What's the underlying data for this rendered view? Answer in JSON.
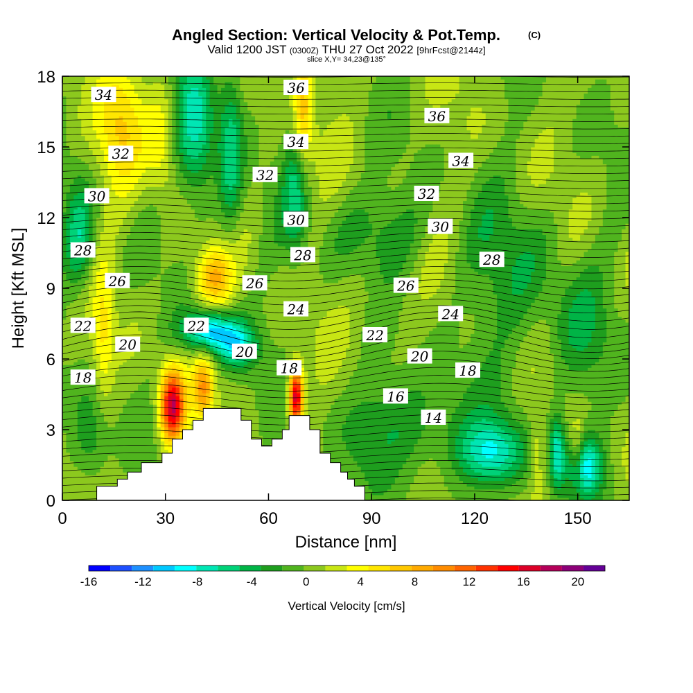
{
  "chart_data": {
    "type": "heatmap",
    "title": "Angled Section: Vertical Velocity & Pot.Temp.",
    "title_mark": "(C)",
    "subtitle_parts": {
      "valid": "Valid 1200 JST",
      "utc": "(0300Z)",
      "date": "THU 27 Oct 2022",
      "fcst": "[9hrFcst@2144z]"
    },
    "slice_label": "slice X,Y= 34,23@135°",
    "xlabel": "Distance [nm]",
    "ylabel": "Height [Kft MSL]",
    "xlim": [
      0,
      165
    ],
    "ylim": [
      0,
      18
    ],
    "xticks": [
      {
        "v": 0,
        "label": "0"
      },
      {
        "v": 30,
        "label": "30"
      },
      {
        "v": 60,
        "label": "60"
      },
      {
        "v": 90,
        "label": "90"
      },
      {
        "v": 120,
        "label": "120"
      },
      {
        "v": 150,
        "label": "150"
      }
    ],
    "yticks": [
      {
        "v": 0,
        "label": "0"
      },
      {
        "v": 3,
        "label": "3"
      },
      {
        "v": 6,
        "label": "6"
      },
      {
        "v": 9,
        "label": "9"
      },
      {
        "v": 12,
        "label": "12"
      },
      {
        "v": 15,
        "label": "15"
      },
      {
        "v": 18,
        "label": "18"
      }
    ],
    "colorbar": {
      "title": "Vertical Velocity [cm/s]",
      "min": -16,
      "max": 22,
      "colors": [
        "#0000ff",
        "#1e50ff",
        "#1e90ff",
        "#00c8ff",
        "#00ffff",
        "#00e6b4",
        "#00d278",
        "#00b446",
        "#1e9e1e",
        "#50b41e",
        "#8cc81e",
        "#c8e614",
        "#ffff00",
        "#ffe600",
        "#ffc800",
        "#ffaa00",
        "#ff8c00",
        "#ff6400",
        "#ff3200",
        "#ff0000",
        "#dc0028",
        "#b4005a",
        "#8c0078",
        "#640096"
      ],
      "labels": [
        {
          "v": -16,
          "label": "-16"
        },
        {
          "v": -12,
          "label": "-12"
        },
        {
          "v": -8,
          "label": "-8"
        },
        {
          "v": -4,
          "label": "-4"
        },
        {
          "v": 0,
          "label": "0"
        },
        {
          "v": 4,
          "label": "4"
        },
        {
          "v": 8,
          "label": "8"
        },
        {
          "v": 12,
          "label": "12"
        },
        {
          "v": 16,
          "label": "16"
        },
        {
          "v": 20,
          "label": "20"
        }
      ]
    },
    "terrain": [
      [
        10,
        0.6
      ],
      [
        16,
        0.6
      ],
      [
        16,
        0.9
      ],
      [
        19,
        0.9
      ],
      [
        19,
        1.2
      ],
      [
        23,
        1.2
      ],
      [
        23,
        1.6
      ],
      [
        29,
        1.6
      ],
      [
        29,
        2.0
      ],
      [
        32,
        2.0
      ],
      [
        32,
        2.6
      ],
      [
        35,
        2.6
      ],
      [
        35,
        3.0
      ],
      [
        38,
        3.0
      ],
      [
        38,
        3.4
      ],
      [
        41,
        3.4
      ],
      [
        41,
        3.9
      ],
      [
        52,
        3.9
      ],
      [
        52,
        3.4
      ],
      [
        55,
        3.4
      ],
      [
        55,
        2.6
      ],
      [
        58,
        2.6
      ],
      [
        58,
        2.3
      ],
      [
        61,
        2.3
      ],
      [
        61,
        2.6
      ],
      [
        64,
        2.6
      ],
      [
        64,
        3.0
      ],
      [
        66,
        3.0
      ],
      [
        66,
        3.6
      ],
      [
        72,
        3.6
      ],
      [
        72,
        3.0
      ],
      [
        75,
        3.0
      ],
      [
        75,
        2.0
      ],
      [
        78,
        2.0
      ],
      [
        78,
        1.6
      ],
      [
        81,
        1.6
      ],
      [
        81,
        1.2
      ],
      [
        83,
        1.2
      ],
      [
        83,
        0.9
      ],
      [
        85,
        0.9
      ],
      [
        85,
        0.6
      ],
      [
        88,
        0.6
      ],
      [
        88,
        0.3
      ]
    ],
    "theta_labels": [
      {
        "x": 12,
        "y": 17.2,
        "label": "34"
      },
      {
        "x": 17,
        "y": 14.7,
        "label": "32"
      },
      {
        "x": 10,
        "y": 12.9,
        "label": "30"
      },
      {
        "x": 6,
        "y": 10.6,
        "label": "28"
      },
      {
        "x": 16,
        "y": 9.3,
        "label": "26"
      },
      {
        "x": 6,
        "y": 7.4,
        "label": "22"
      },
      {
        "x": 19,
        "y": 6.6,
        "label": "20"
      },
      {
        "x": 6,
        "y": 5.2,
        "label": "18"
      },
      {
        "x": 68,
        "y": 17.5,
        "label": "36"
      },
      {
        "x": 68,
        "y": 15.2,
        "label": "34"
      },
      {
        "x": 59,
        "y": 13.8,
        "label": "32"
      },
      {
        "x": 68,
        "y": 11.9,
        "label": "30"
      },
      {
        "x": 70,
        "y": 10.4,
        "label": "28"
      },
      {
        "x": 56,
        "y": 9.2,
        "label": "26"
      },
      {
        "x": 68,
        "y": 8.1,
        "label": "24"
      },
      {
        "x": 39,
        "y": 7.4,
        "label": "22"
      },
      {
        "x": 53,
        "y": 6.3,
        "label": "20"
      },
      {
        "x": 66,
        "y": 5.6,
        "label": "18"
      },
      {
        "x": 109,
        "y": 16.3,
        "label": "36"
      },
      {
        "x": 116,
        "y": 14.4,
        "label": "34"
      },
      {
        "x": 106,
        "y": 13.0,
        "label": "32"
      },
      {
        "x": 110,
        "y": 11.6,
        "label": "30"
      },
      {
        "x": 125,
        "y": 10.2,
        "label": "28"
      },
      {
        "x": 100,
        "y": 9.1,
        "label": "26"
      },
      {
        "x": 113,
        "y": 7.9,
        "label": "24"
      },
      {
        "x": 91,
        "y": 7.0,
        "label": "22"
      },
      {
        "x": 104,
        "y": 6.1,
        "label": "20"
      },
      {
        "x": 118,
        "y": 5.5,
        "label": "18"
      },
      {
        "x": 97,
        "y": 4.4,
        "label": "16"
      },
      {
        "x": 108,
        "y": 3.5,
        "label": "14"
      }
    ],
    "w_anomalies": [
      {
        "x": 32,
        "y": 4.0,
        "sx": 2.5,
        "sy": 1.1,
        "w": 17
      },
      {
        "x": 41,
        "y": 4.8,
        "sx": 2.0,
        "sy": 0.9,
        "w": 8
      },
      {
        "x": 68,
        "y": 4.4,
        "sx": 1.4,
        "sy": 0.9,
        "w": 17
      },
      {
        "x": 44,
        "y": 9.5,
        "sx": 4.0,
        "sy": 0.9,
        "w": 7
      },
      {
        "x": 43,
        "y": 7.2,
        "sx": 5.5,
        "sy": 0.6,
        "w": -11
      },
      {
        "x": 51,
        "y": 6.5,
        "sx": 4.0,
        "sy": 0.6,
        "w": -7
      },
      {
        "x": 17,
        "y": 16.0,
        "sx": 5.0,
        "sy": 2.0,
        "w": 5
      },
      {
        "x": 29,
        "y": 15.5,
        "sx": 3.0,
        "sy": 1.8,
        "w": 4
      },
      {
        "x": 70,
        "y": 16.5,
        "sx": 2.0,
        "sy": 1.8,
        "w": 7
      },
      {
        "x": 39,
        "y": 16.0,
        "sx": 4.0,
        "sy": 2.4,
        "w": -7
      },
      {
        "x": 49,
        "y": 15.0,
        "sx": 2.5,
        "sy": 2.8,
        "w": -6
      },
      {
        "x": 68,
        "y": 13.2,
        "sx": 2.5,
        "sy": 2.2,
        "w": -5
      },
      {
        "x": 5,
        "y": 11.0,
        "sx": 3.0,
        "sy": 1.6,
        "w": -6
      },
      {
        "x": 12,
        "y": 7.0,
        "sx": 2.0,
        "sy": 2.0,
        "w": 4
      },
      {
        "x": 100,
        "y": 3.2,
        "sx": 12.0,
        "sy": 1.5,
        "w": -4
      },
      {
        "x": 125,
        "y": 2.0,
        "sx": 7.0,
        "sy": 1.0,
        "w": -8
      },
      {
        "x": 144,
        "y": 2.0,
        "sx": 1.5,
        "sy": 1.1,
        "w": -8
      },
      {
        "x": 152,
        "y": 1.5,
        "sx": 3.5,
        "sy": 0.9,
        "w": -9
      },
      {
        "x": 138,
        "y": 2.0,
        "sx": 1.5,
        "sy": 1.2,
        "w": 3
      },
      {
        "x": 150,
        "y": 2.0,
        "sx": 1.5,
        "sy": 1.0,
        "w": 5
      },
      {
        "x": 130,
        "y": 9.5,
        "sx": 10.0,
        "sy": 2.5,
        "w": -3
      },
      {
        "x": 93,
        "y": 8.5,
        "sx": 5.0,
        "sy": 1.0,
        "w": 1
      },
      {
        "x": 93,
        "y": 11.5,
        "sx": 10.0,
        "sy": 1.3,
        "w": -3
      },
      {
        "x": 8,
        "y": 2.5,
        "sx": 4.0,
        "sy": 1.5,
        "w": -4
      },
      {
        "x": 150,
        "y": 7.0,
        "sx": 6.0,
        "sy": 2.0,
        "w": -3
      }
    ]
  }
}
